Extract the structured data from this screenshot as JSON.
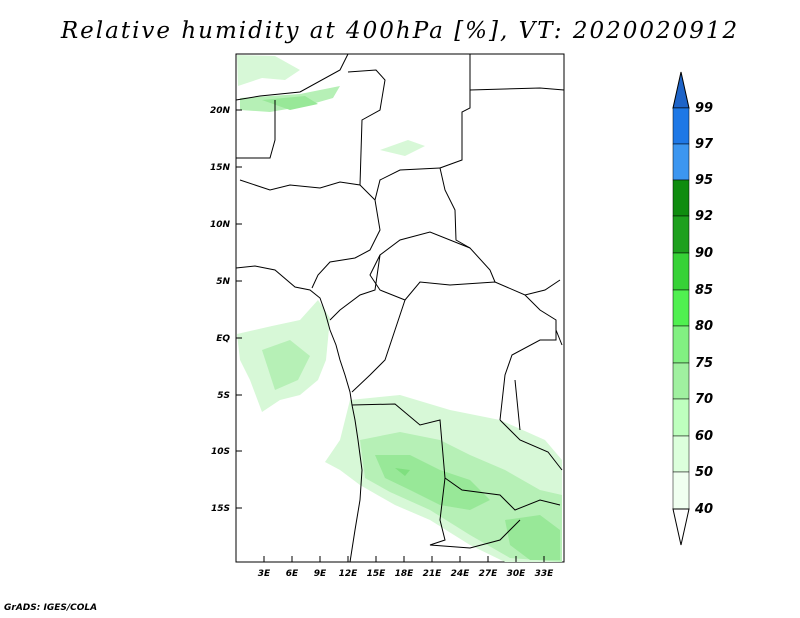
{
  "title": "Relative humidity at 400hPa [%], VT: 2020020912",
  "credit": "GrADS: IGES/COLA",
  "lat_ticks": [
    "20N",
    "15N",
    "10N",
    "5N",
    "EQ",
    "5S",
    "10S",
    "15S"
  ],
  "lon_ticks": [
    "3E",
    "6E",
    "9E",
    "12E",
    "15E",
    "18E",
    "21E",
    "24E",
    "27E",
    "30E",
    "33E"
  ],
  "colorbar": {
    "labels": [
      "99",
      "97",
      "95",
      "92",
      "90",
      "85",
      "80",
      "75",
      "70",
      "60",
      "50",
      "40"
    ],
    "colors": [
      "#1e64c8",
      "#1e78e6",
      "#3c96f0",
      "#0f8c0f",
      "#1ea01e",
      "#37d237",
      "#50f050",
      "#82f082",
      "#a0f0a0",
      "#beffbe",
      "#dcffdc",
      "#f0fff0"
    ]
  }
}
